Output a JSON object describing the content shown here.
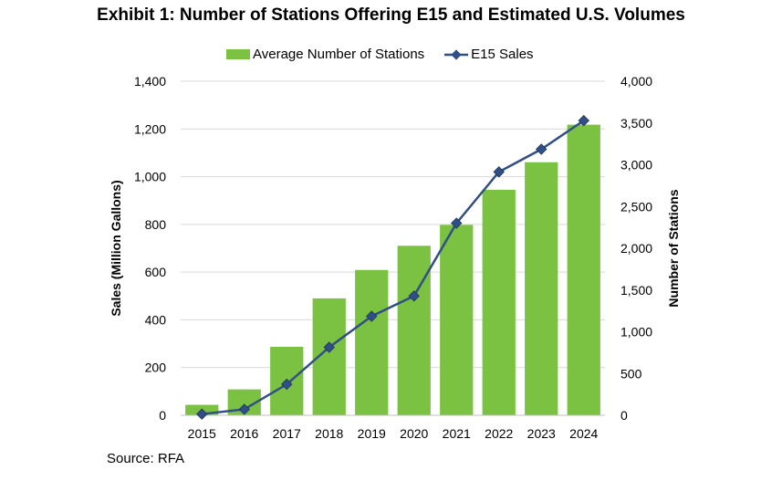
{
  "title": "Exhibit 1: Number of Stations Offering E15 and Estimated U.S. Volumes",
  "source": "Source: RFA",
  "colors": {
    "bar": "#7cc242",
    "line": "#2f4f86",
    "marker": "#2f4f86",
    "grid": "#d9d9d9"
  },
  "chart_data": {
    "type": "bar",
    "title": "Exhibit 1: Number of Stations Offering E15 and Estimated U.S. Volumes",
    "categories": [
      "2015",
      "2016",
      "2017",
      "2018",
      "2019",
      "2020",
      "2021",
      "2022",
      "2023",
      "2024"
    ],
    "series": [
      {
        "name": "Average Number of Stations",
        "type": "bar",
        "axis": "right",
        "values": [
          125,
          310,
          820,
          1400,
          1740,
          2030,
          2280,
          2700,
          3030,
          3480
        ]
      },
      {
        "name": "E15 Sales",
        "type": "line",
        "axis": "left",
        "values": [
          5,
          25,
          130,
          285,
          415,
          500,
          805,
          1020,
          1115,
          1235
        ]
      }
    ],
    "ylabel": "Sales (Million Gallons)",
    "y2label": "Number of Stations",
    "ylim": [
      0,
      1400
    ],
    "y2lim": [
      0,
      4000
    ],
    "yticks": [
      "0",
      "200",
      "400",
      "600",
      "800",
      "1,000",
      "1,200",
      "1,400"
    ],
    "y2ticks": [
      "0",
      "500",
      "1,000",
      "1,500",
      "2,000",
      "2,500",
      "3,000",
      "3,500",
      "4,000"
    ],
    "legend": [
      "Average Number of Stations",
      "E15 Sales"
    ],
    "legend_position": "top",
    "grid": true
  }
}
